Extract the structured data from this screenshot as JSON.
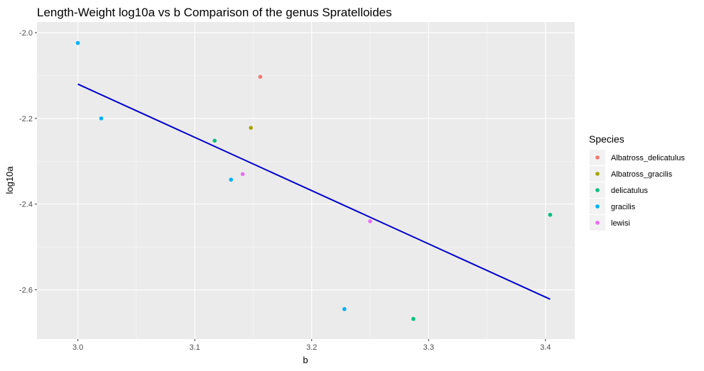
{
  "chart_data": {
    "type": "scatter",
    "title": "Length-Weight log10a vs b Comparison of the genus Spratelloides",
    "xlabel": "b",
    "ylabel": "log10a",
    "xlim": [
      2.965,
      3.425
    ],
    "ylim": [
      -2.715,
      -1.975
    ],
    "xticks": [
      3.0,
      3.1,
      3.2,
      3.3,
      3.4
    ],
    "xtick_labels": [
      "3.0",
      "3.1",
      "3.2",
      "3.3",
      "3.4"
    ],
    "yticks": [
      -2.0,
      -2.2,
      -2.4,
      -2.6
    ],
    "ytick_labels": [
      "-2.0",
      "-2.2",
      "-2.4",
      "-2.6"
    ],
    "grid": true,
    "legend": {
      "title": "Species",
      "position": "right"
    },
    "series": [
      {
        "name": "Albatross_delicatulus",
        "color": "#F8766D",
        "points": [
          [
            3.156,
            -2.103
          ]
        ]
      },
      {
        "name": "Albatross_gracilis",
        "color": "#A3A500",
        "points": [
          [
            3.148,
            -2.222
          ]
        ]
      },
      {
        "name": "delicatulus",
        "color": "#00BF7D",
        "points": [
          [
            3.117,
            -2.252
          ],
          [
            3.404,
            -2.425
          ],
          [
            3.287,
            -2.668
          ]
        ]
      },
      {
        "name": "gracilis",
        "color": "#00B0F6",
        "points": [
          [
            3.0,
            -2.024
          ],
          [
            3.02,
            -2.2
          ],
          [
            3.131,
            -2.343
          ],
          [
            3.228,
            -2.645
          ]
        ]
      },
      {
        "name": "lewisi",
        "color": "#E76BF3",
        "points": [
          [
            3.141,
            -2.33
          ],
          [
            3.25,
            -2.44
          ]
        ]
      }
    ],
    "fit_line": {
      "color": "#0000CC",
      "points": [
        [
          3.0,
          -2.12
        ],
        [
          3.404,
          -2.622
        ]
      ]
    }
  }
}
